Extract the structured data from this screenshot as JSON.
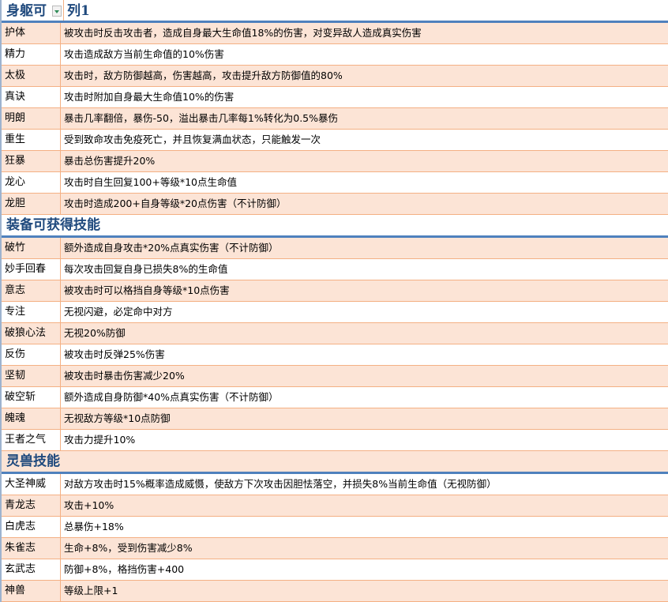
{
  "colors": {
    "peach": "#fce4d6",
    "border": "#f4b084",
    "header_text": "#1f497d",
    "header_rule": "#4f81bd"
  },
  "sections": [
    {
      "title": "身躯可",
      "title2": "列1",
      "filter_icon": "dropdown-filter-icon",
      "rows": [
        {
          "name": "护体",
          "desc": "被攻击时反击攻击者，造成自身最大生命值18%的伤害，对变异敌人造成真实伤害"
        },
        {
          "name": "精力",
          "desc": "攻击造成敌方当前生命值的10%伤害"
        },
        {
          "name": "太极",
          "desc": "攻击时，敌方防御越高，伤害越高，攻击提升敌方防御值的80%"
        },
        {
          "name": "真诀",
          "desc": "攻击时附加自身最大生命值10%的伤害"
        },
        {
          "name": "明朗",
          "desc": "暴击几率翻倍，暴伤-50，溢出暴击几率每1%转化为0.5%暴伤"
        },
        {
          "name": "重生",
          "desc": "受到致命攻击免疫死亡，并且恢复满血状态，只能触发一次"
        },
        {
          "name": "狂暴",
          "desc": "暴击总伤害提升20%"
        },
        {
          "name": "龙心",
          "desc": "攻击时自生回复100+等级*10点生命值"
        },
        {
          "name": "龙胆",
          "desc": "攻击时造成200+自身等级*20点伤害（不计防御）"
        }
      ]
    },
    {
      "title": "装备可获得技能",
      "rows": [
        {
          "name": "破竹",
          "desc": "额外造成自身攻击*20%点真实伤害（不计防御）"
        },
        {
          "name": "妙手回春",
          "desc": "每次攻击回复自身已损失8%的生命值"
        },
        {
          "name": "意志",
          "desc": "被攻击时可以格挡自身等级*10点伤害"
        },
        {
          "name": "专注",
          "desc": "无视闪避，必定命中对方"
        },
        {
          "name": "破狼心法",
          "desc": "无视20%防御"
        },
        {
          "name": "反伤",
          "desc": "被攻击时反弹25%伤害"
        },
        {
          "name": "坚韧",
          "desc": "被攻击时暴击伤害减少20%"
        },
        {
          "name": "破空斩",
          "desc": "额外造成自身防御*40%点真实伤害（不计防御）"
        },
        {
          "name": "魄魂",
          "desc": "无视敌方等级*10点防御"
        },
        {
          "name": "王者之气",
          "desc": "攻击力提升10%"
        }
      ]
    },
    {
      "title": "灵兽技能",
      "rows": [
        {
          "name": "大圣神威",
          "desc": "对敌方攻击时15%概率造成威慑，使敌方下次攻击因胆怯落空，并损失8%当前生命值（无视防御）"
        },
        {
          "name": "青龙志",
          "desc": "攻击+10%"
        },
        {
          "name": "白虎志",
          "desc": "总暴伤+18%"
        },
        {
          "name": "朱雀志",
          "desc": "生命+8%，受到伤害减少8%"
        },
        {
          "name": "玄武志",
          "desc": "防御+8%，格挡伤害+400"
        },
        {
          "name": "神兽",
          "desc": "等级上限+1"
        }
      ]
    }
  ]
}
